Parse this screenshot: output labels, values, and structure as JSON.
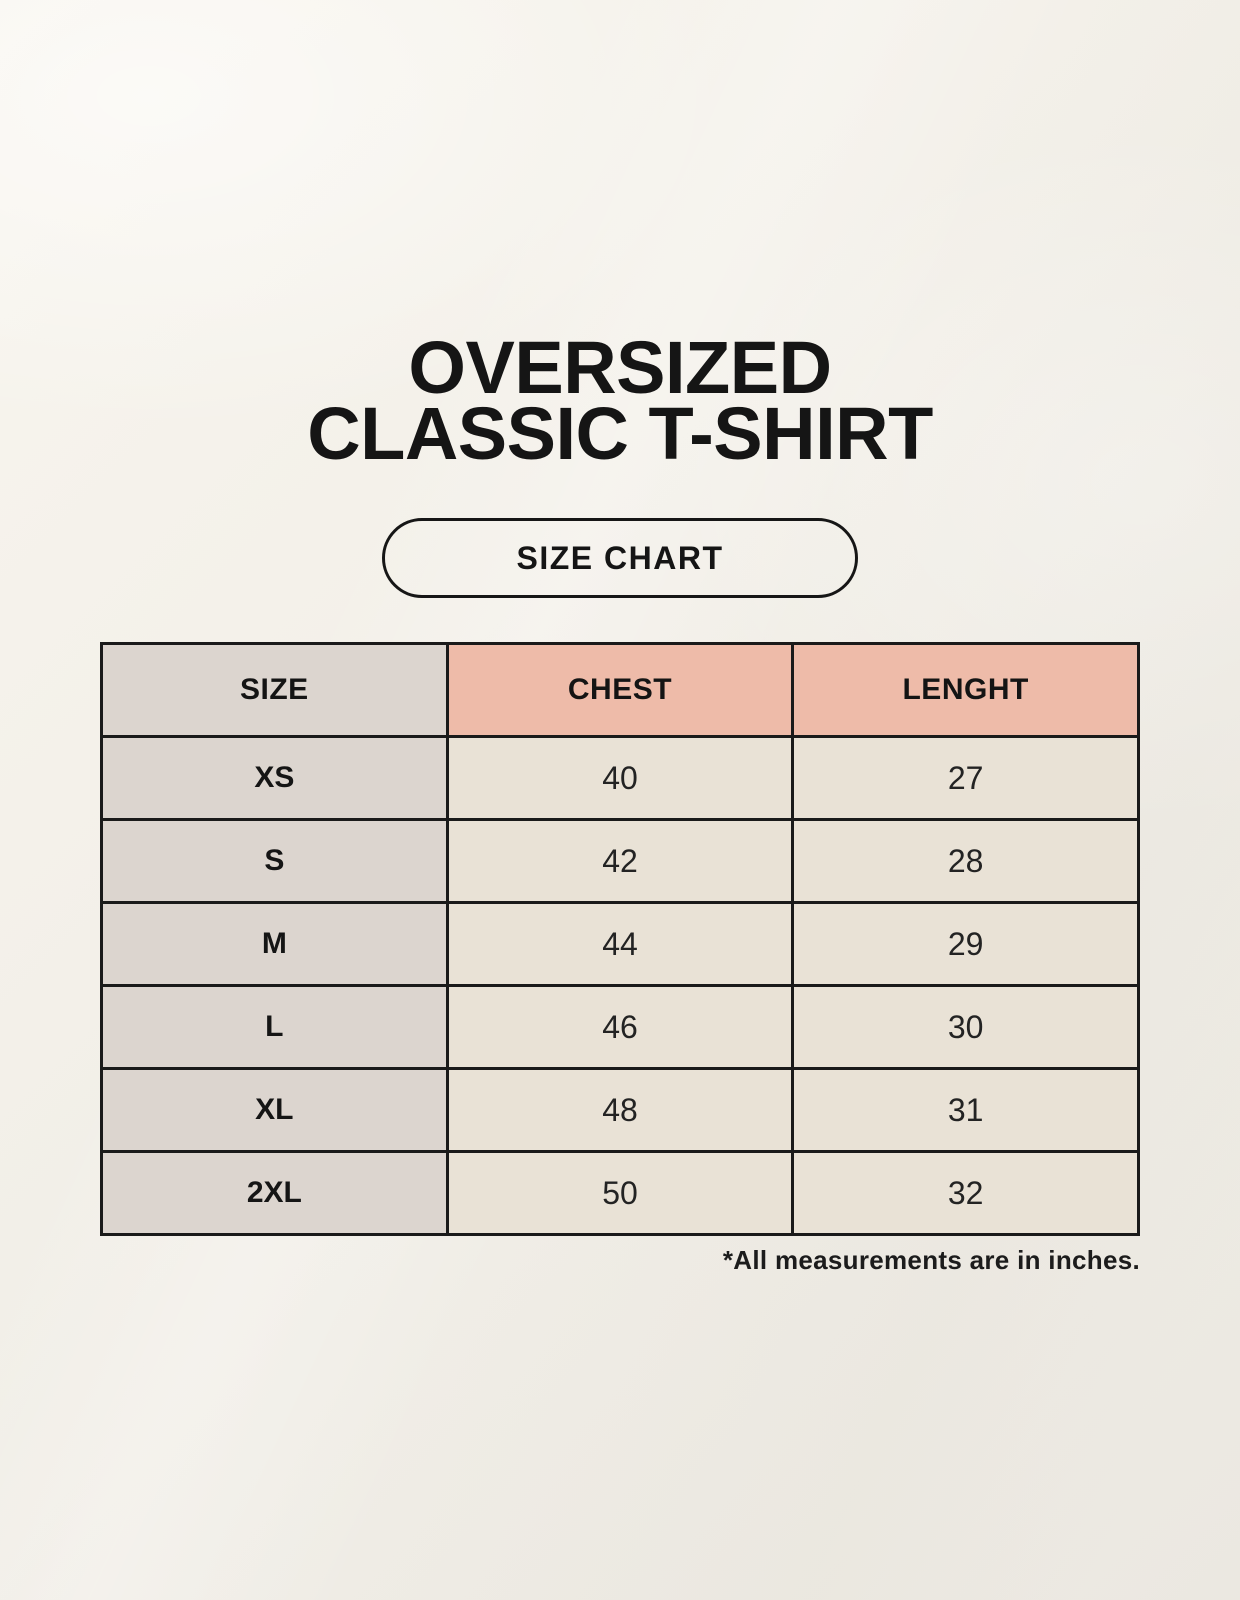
{
  "page": {
    "title_line1": "OVERSIZED",
    "title_line2": "CLASSIC T-SHIRT",
    "size_chart_button": "SIZE CHART",
    "footnote": "*All measurements are in inches."
  },
  "colors": {
    "background": "#F2EFE8",
    "header_size_bg": "#DCD5CF",
    "header_measure_bg": "#EEBBA9",
    "row_label_bg": "#DCD5CF",
    "cell_bg": "#E9E2D6",
    "border": "#1A1A1A",
    "text": "#141414"
  },
  "chart_data": {
    "type": "table",
    "title": "OVERSIZED CLASSIC T-SHIRT",
    "subtitle": "SIZE CHART",
    "columns": [
      "SIZE",
      "CHEST",
      "LENGHT"
    ],
    "rows": [
      [
        "XS",
        "40",
        "27"
      ],
      [
        "S",
        "42",
        "28"
      ],
      [
        "M",
        "44",
        "29"
      ],
      [
        "L",
        "46",
        "30"
      ],
      [
        "XL",
        "48",
        "31"
      ],
      [
        "2XL",
        "50",
        "32"
      ]
    ],
    "note": "*All measurements are in inches.",
    "units": "inches"
  }
}
